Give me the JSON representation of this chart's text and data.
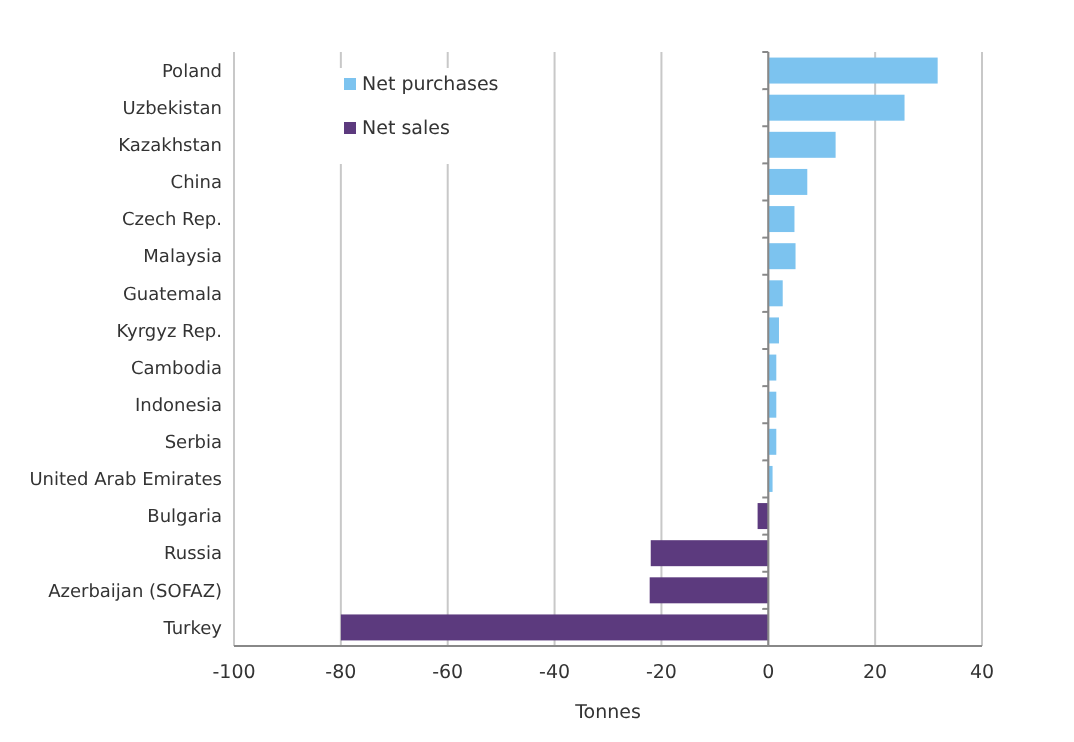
{
  "chart_data": {
    "type": "bar",
    "orientation": "horizontal",
    "stacked": true,
    "xlabel": "Tonnes",
    "categories": [
      "Poland",
      "Uzbekistan",
      "Kazakhstan",
      "China",
      "Czech Rep.",
      "Malaysia",
      "Guatemala",
      "Kyrgyz Rep.",
      "Cambodia",
      "Indonesia",
      "Serbia",
      "United Arab Emirates",
      "Bulgaria",
      "Russia",
      "Azerbaijan (SOFAZ)",
      "Turkey"
    ],
    "series": [
      {
        "name": "Net purchases",
        "color": "#7cc3ef",
        "values": [
          31.7,
          25.5,
          12.6,
          7.3,
          4.9,
          5.1,
          2.7,
          2.0,
          1.5,
          1.5,
          1.5,
          0.8,
          null,
          null,
          null,
          null
        ]
      },
      {
        "name": "Net sales",
        "color": "#5c3a7e",
        "values": [
          null,
          null,
          null,
          null,
          null,
          null,
          null,
          null,
          null,
          null,
          null,
          null,
          -2.0,
          -22.0,
          -22.2,
          -80
        ]
      }
    ],
    "xlim": [
      -100,
      40
    ],
    "xticks": [
      -100,
      -80,
      -60,
      -40,
      -20,
      0,
      20,
      40
    ],
    "grid": "x",
    "legend": "top left"
  }
}
